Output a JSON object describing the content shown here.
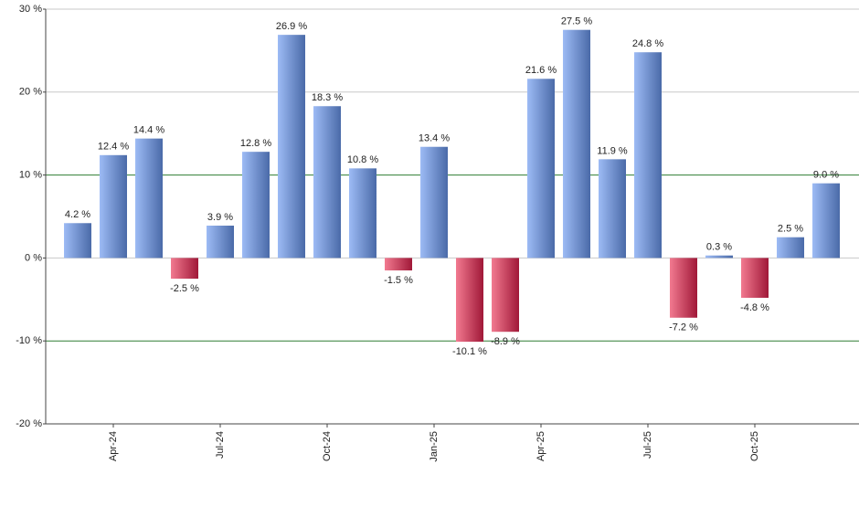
{
  "chart_data": {
    "type": "bar",
    "categories": [
      null,
      "Apr-24",
      null,
      null,
      "Jul-24",
      null,
      null,
      "Oct-24",
      null,
      null,
      "Jan-25",
      null,
      null,
      "Apr-25",
      null,
      null,
      "Jul-25",
      null,
      null,
      "Oct-25",
      null,
      null
    ],
    "values": [
      4.2,
      12.4,
      14.4,
      -2.5,
      3.9,
      12.8,
      26.9,
      18.3,
      10.8,
      -1.5,
      13.4,
      -10.1,
      -8.9,
      21.6,
      27.5,
      11.9,
      24.8,
      -7.2,
      0.3,
      -4.8,
      2.5,
      9.0
    ],
    "value_labels": [
      "4.2 %",
      "12.4 %",
      "14.4 %",
      "-2.5 %",
      "3.9 %",
      "12.8 %",
      "26.9 %",
      "18.3 %",
      "10.8 %",
      "-1.5 %",
      "13.4 %",
      "-10.1 %",
      "-8.9 %",
      "21.6 %",
      "27.5 %",
      "11.9 %",
      "24.8 %",
      "-7.2 %",
      "0.3 %",
      "-4.8 %",
      "2.5 %",
      "9.0 %"
    ],
    "color_positive": [
      "#9dbbf5",
      "#4a6aa8"
    ],
    "color_negative": [
      "#f27a90",
      "#a01838"
    ],
    "ylim": [
      -20,
      30
    ],
    "yticks": [
      {
        "value": -20,
        "label": "-20 %"
      },
      {
        "value": -10,
        "label": "-10 %"
      },
      {
        "value": 0,
        "label": "0 %"
      },
      {
        "value": 10,
        "label": "10 %"
      },
      {
        "value": 20,
        "label": "20 %"
      },
      {
        "value": 30,
        "label": "30 %"
      }
    ],
    "grid": true,
    "reference_lines": {
      "values": [
        10,
        -10
      ],
      "color": "#2e7d32"
    }
  }
}
